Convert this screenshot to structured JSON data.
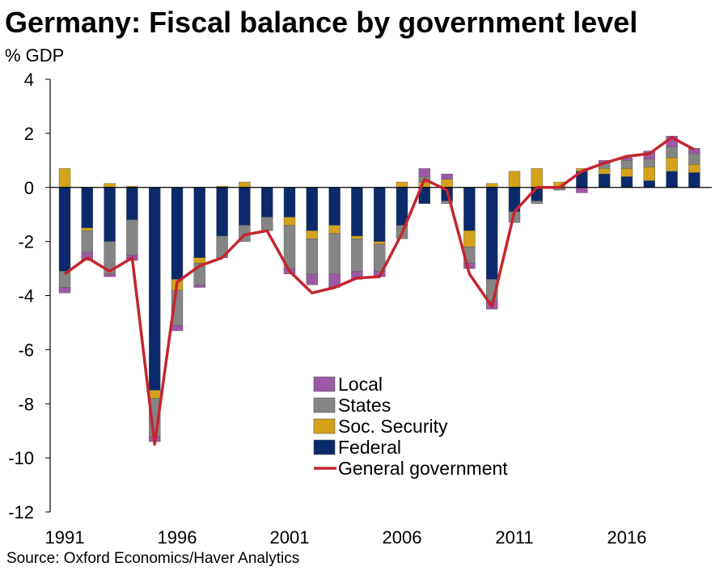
{
  "title": "Germany: Fiscal balance by government level",
  "source": "Source: Oxford Economics/Haver Analytics",
  "chart_data": {
    "type": "bar",
    "stacked": true,
    "title": "Germany: Fiscal balance by government level",
    "ylabel": "% GDP",
    "xlabel": "",
    "ylim": [
      -12,
      4
    ],
    "yticks": [
      4,
      2,
      0,
      -2,
      -4,
      -6,
      -8,
      -10,
      -12
    ],
    "ytick_labels": [
      "4",
      "2",
      "0",
      "-2",
      "-4",
      "-6",
      "-8",
      "-10",
      "-12"
    ],
    "xtick_years": [
      1991,
      1996,
      2001,
      2006,
      2011,
      2016
    ],
    "xtick_labels": [
      "1991",
      "1996",
      "2001",
      "2006",
      "2011",
      "2016"
    ],
    "x": [
      1991,
      1992,
      1993,
      1994,
      1995,
      1996,
      1997,
      1998,
      1999,
      2000,
      2001,
      2002,
      2003,
      2004,
      2005,
      2006,
      2007,
      2008,
      2009,
      2010,
      2011,
      2012,
      2013,
      2014,
      2015,
      2016,
      2017,
      2018,
      2019
    ],
    "legend_position": "bottom-center",
    "grid": false,
    "series": [
      {
        "name": "Local",
        "color": "#9b59a6",
        "values": [
          -0.2,
          -0.3,
          -0.1,
          -0.2,
          -0.2,
          -0.2,
          -0.1,
          0.0,
          0.0,
          0.0,
          -0.2,
          -0.4,
          -0.5,
          -0.3,
          -0.2,
          0.0,
          0.3,
          0.2,
          -0.2,
          -0.3,
          0.0,
          0.0,
          0.0,
          -0.2,
          0.1,
          0.1,
          0.3,
          0.4,
          0.2
        ]
      },
      {
        "name": "States",
        "color": "#858585",
        "values": [
          -0.6,
          -0.8,
          -1.2,
          -1.3,
          -1.4,
          -1.3,
          -0.8,
          -0.8,
          -0.6,
          -0.5,
          -1.6,
          -1.3,
          -1.5,
          -1.2,
          -1.0,
          -0.5,
          0.2,
          -0.1,
          -0.6,
          -0.8,
          -0.4,
          -0.1,
          -0.1,
          0.0,
          0.2,
          0.3,
          0.3,
          0.4,
          0.4
        ]
      },
      {
        "name": "Soc. Security",
        "color": "#d4a21a",
        "values": [
          0.7,
          -0.1,
          0.15,
          0.05,
          -0.3,
          -0.4,
          -0.2,
          0.05,
          0.2,
          0.0,
          -0.3,
          -0.3,
          -0.3,
          -0.1,
          -0.1,
          0.2,
          0.2,
          0.3,
          -0.6,
          0.15,
          0.6,
          0.7,
          0.2,
          0.1,
          0.2,
          0.3,
          0.5,
          0.5,
          0.3
        ]
      },
      {
        "name": "Federal",
        "color": "#0a2a6b",
        "values": [
          -3.1,
          -1.5,
          -2.0,
          -1.2,
          -7.5,
          -3.4,
          -2.6,
          -1.8,
          -1.4,
          -1.1,
          -1.1,
          -1.6,
          -1.4,
          -1.8,
          -2.0,
          -1.4,
          -0.6,
          -0.5,
          -1.6,
          -3.4,
          -0.9,
          -0.5,
          0.0,
          0.6,
          0.5,
          0.4,
          0.25,
          0.6,
          0.55
        ]
      },
      {
        "name": "General government",
        "color": "#c4252f",
        "type": "line",
        "values": [
          -3.2,
          -2.6,
          -3.1,
          -2.6,
          -9.5,
          -3.5,
          -2.9,
          -2.6,
          -1.75,
          -1.6,
          -3.1,
          -3.9,
          -3.7,
          -3.35,
          -3.3,
          -1.7,
          0.3,
          -0.1,
          -3.2,
          -4.4,
          -0.9,
          0.0,
          0.0,
          0.6,
          0.9,
          1.15,
          1.25,
          1.85,
          1.4
        ]
      }
    ],
    "legend_order": [
      "Local",
      "States",
      "Soc. Security",
      "Federal",
      "General government"
    ]
  }
}
